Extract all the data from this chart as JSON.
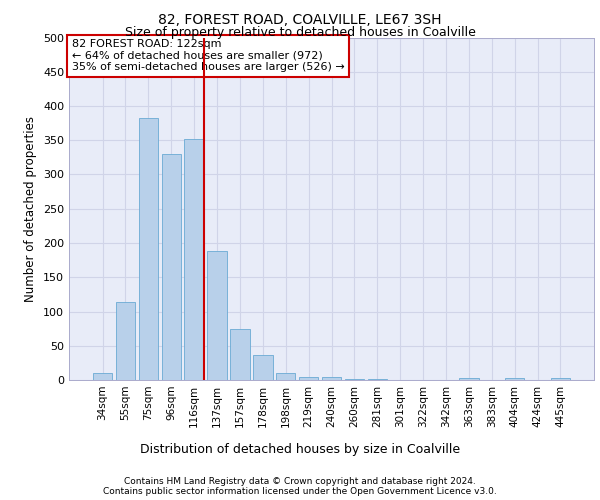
{
  "title1": "82, FOREST ROAD, COALVILLE, LE67 3SH",
  "title2": "Size of property relative to detached houses in Coalville",
  "dist_label": "Distribution of detached houses by size in Coalville",
  "ylabel": "Number of detached properties",
  "categories": [
    "34sqm",
    "55sqm",
    "75sqm",
    "96sqm",
    "116sqm",
    "137sqm",
    "157sqm",
    "178sqm",
    "198sqm",
    "219sqm",
    "240sqm",
    "260sqm",
    "281sqm",
    "301sqm",
    "322sqm",
    "342sqm",
    "363sqm",
    "383sqm",
    "404sqm",
    "424sqm",
    "445sqm"
  ],
  "values": [
    10,
    114,
    383,
    330,
    352,
    188,
    75,
    37,
    10,
    5,
    5,
    2,
    1,
    0,
    0,
    0,
    3,
    0,
    3,
    0,
    3
  ],
  "bar_color": "#b8d0ea",
  "bar_edge_color": "#6aaad4",
  "grid_color": "#d0d4e8",
  "background_color": "#e8ecf8",
  "vline_x_index": 4,
  "vline_color": "#cc0000",
  "annotation_text": "82 FOREST ROAD: 122sqm\n← 64% of detached houses are smaller (972)\n35% of semi-detached houses are larger (526) →",
  "annotation_box_facecolor": "#ffffff",
  "annotation_box_edgecolor": "#cc0000",
  "ylim": [
    0,
    500
  ],
  "yticks": [
    0,
    50,
    100,
    150,
    200,
    250,
    300,
    350,
    400,
    450,
    500
  ],
  "footer1": "Contains HM Land Registry data © Crown copyright and database right 2024.",
  "footer2": "Contains public sector information licensed under the Open Government Licence v3.0."
}
